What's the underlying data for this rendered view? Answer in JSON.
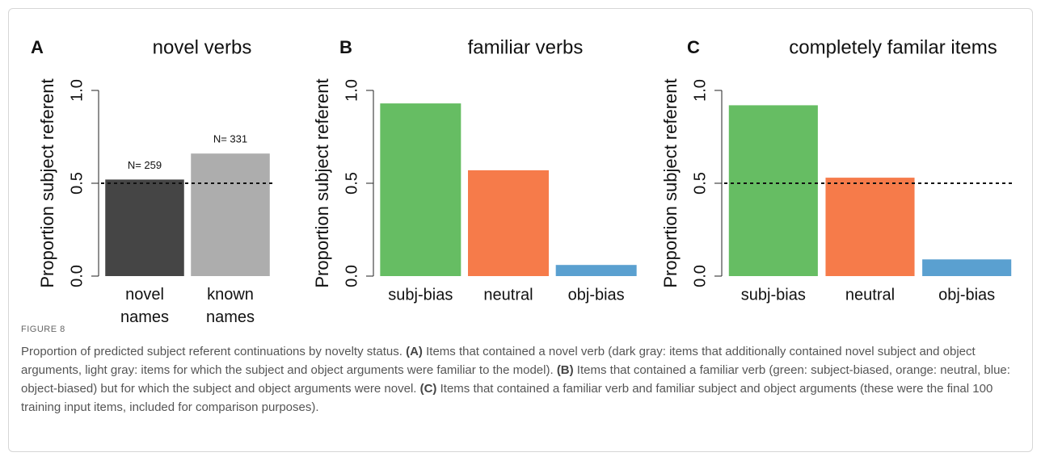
{
  "chart_data": [
    {
      "type": "bar",
      "panel": "A",
      "title": "novel verbs",
      "ylabel": "Proportion subject referent",
      "categories": [
        "novel names",
        "known names"
      ],
      "values": [
        0.52,
        0.66
      ],
      "colors": [
        "#454545",
        "#adadad"
      ],
      "annotations": [
        "N= 259",
        "N= 331"
      ],
      "hline": 0.5,
      "ylim": [
        0,
        1
      ],
      "yticks": [
        {
          "value": 0,
          "label": "0.0"
        },
        {
          "value": 0.5,
          "label": "0.5"
        },
        {
          "value": 1,
          "label": "1.0"
        }
      ]
    },
    {
      "type": "bar",
      "panel": "B",
      "title": "familiar verbs",
      "ylabel": "Proportion subject referent",
      "categories": [
        "subj-bias",
        "neutral",
        "obj-bias"
      ],
      "values": [
        0.93,
        0.57,
        0.06
      ],
      "colors": [
        "#66bd63",
        "#f67b4a",
        "#5aa0d0"
      ],
      "ylim": [
        0,
        1
      ],
      "yticks": [
        {
          "value": 0,
          "label": "0.0"
        },
        {
          "value": 0.5,
          "label": "0.5"
        },
        {
          "value": 1,
          "label": "1.0"
        }
      ]
    },
    {
      "type": "bar",
      "panel": "C",
      "title": "completely familar items",
      "ylabel": "Proportion subject referent",
      "categories": [
        "subj-bias",
        "neutral",
        "obj-bias"
      ],
      "values": [
        0.92,
        0.53,
        0.09
      ],
      "colors": [
        "#66bd63",
        "#f67b4a",
        "#5aa0d0"
      ],
      "hline": 0.5,
      "ylim": [
        0,
        1
      ],
      "yticks": [
        {
          "value": 0,
          "label": "0.0"
        },
        {
          "value": 0.5,
          "label": "0.5"
        },
        {
          "value": 1,
          "label": "1.0"
        }
      ]
    }
  ],
  "figure_label": "FIGURE 8",
  "caption": [
    {
      "text": "Proportion of predicted subject referent continuations by novelty status. "
    },
    {
      "text": "(A)",
      "bold": true
    },
    {
      "text": " Items that contained a novel verb (dark gray: items that additionally contained novel subject and object arguments, light gray: items for which the subject and object arguments were familiar to the model). "
    },
    {
      "text": "(B)",
      "bold": true
    },
    {
      "text": " Items that contained a familiar verb (green: subject-biased, orange: neutral, blue: object-biased) but for which the subject and object arguments were novel. "
    },
    {
      "text": "(C)",
      "bold": true
    },
    {
      "text": " Items that contained a familiar verb and familiar subject and object arguments (these were the final 100 training input items, included for comparison purposes)."
    }
  ]
}
